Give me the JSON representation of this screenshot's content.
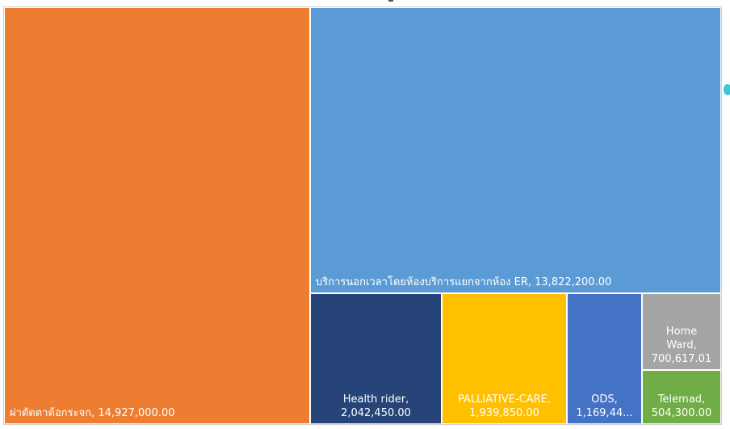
{
  "chart_data": {
    "type": "treemap",
    "title": "",
    "items": [
      {
        "label": "ผ่าตัดตาต้อกระจก",
        "value": 14927000.0,
        "display": "ผ่าตัดตาต้อกระจก, 14,927,000.00",
        "color": "#ED7D31"
      },
      {
        "label": "บริการนอกเวลาโดยห้องบริการแยกจากห้อง ER",
        "value": 13822200.0,
        "display": "บริการนอกเวลาโดยห้องบริการแยกจากห้อง ER, 13,822,200.00",
        "color": "#5B9BD5"
      },
      {
        "label": "Health rider",
        "value": 2042450.0,
        "display": "Health rider,\n2,042,450.00",
        "color": "#264478"
      },
      {
        "label": "PALLIATIVE-CARE",
        "value": 1939850.0,
        "display": "PALLIATIVE-CARE,\n1,939,850.00",
        "color": "#FFC000"
      },
      {
        "label": "ODS",
        "value": 1169440,
        "display": "ODS,\n1,169,44...",
        "color": "#4472C4"
      },
      {
        "label": "Home Ward",
        "value": 700617.01,
        "display": "Home\nWard,\n700,617.01",
        "color": "#A5A5A5"
      },
      {
        "label": "Telemad",
        "value": 504300.0,
        "display": "Telemad,\n504,300.00",
        "color": "#70AD47"
      }
    ]
  }
}
